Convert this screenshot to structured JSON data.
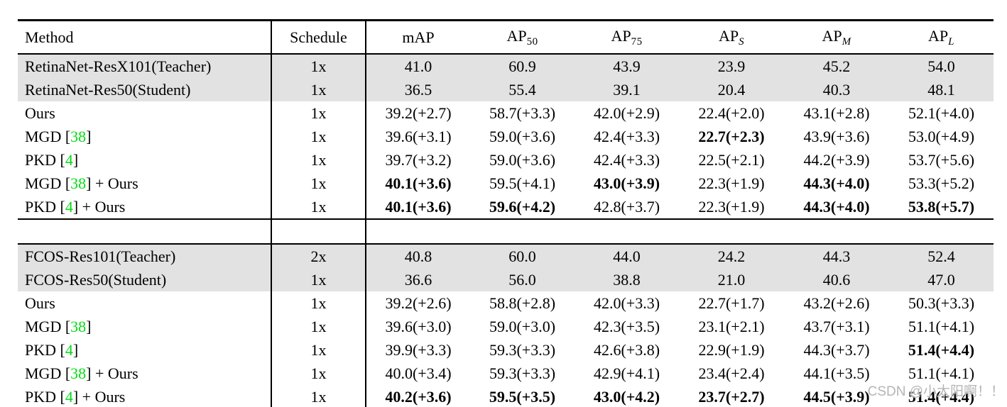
{
  "colors": {
    "citation": "#00dd11",
    "shaded_row": "#e2e2e2"
  },
  "watermark": "CSDN @小太阳啊！！",
  "table": {
    "columns": [
      {
        "label": "Method",
        "sub": ""
      },
      {
        "label": "Schedule",
        "sub": ""
      },
      {
        "label": "mAP",
        "sub": ""
      },
      {
        "label": "AP",
        "sub": "50"
      },
      {
        "label": "AP",
        "sub": "75"
      },
      {
        "label": "AP",
        "sub": "S"
      },
      {
        "label": "AP",
        "sub": "M"
      },
      {
        "label": "AP",
        "sub": "L"
      }
    ],
    "sections": [
      {
        "name": "retinanet",
        "rows": [
          {
            "shaded": true,
            "schedule": "1x",
            "method": [
              {
                "t": "RetinaNet-ResX101(Teacher)"
              }
            ],
            "cells": [
              {
                "t": "41.0"
              },
              {
                "t": "60.9"
              },
              {
                "t": "43.9"
              },
              {
                "t": "23.9"
              },
              {
                "t": "45.2"
              },
              {
                "t": "54.0"
              }
            ]
          },
          {
            "shaded": true,
            "schedule": "1x",
            "method": [
              {
                "t": "RetinaNet-Res50(Student)"
              }
            ],
            "cells": [
              {
                "t": "36.5"
              },
              {
                "t": "55.4"
              },
              {
                "t": "39.1"
              },
              {
                "t": "20.4"
              },
              {
                "t": "40.3"
              },
              {
                "t": "48.1"
              }
            ]
          },
          {
            "schedule": "1x",
            "method": [
              {
                "t": "Ours"
              }
            ],
            "cells": [
              {
                "t": "39.2(+2.7)"
              },
              {
                "t": "58.7(+3.3)"
              },
              {
                "t": "42.0(+2.9)"
              },
              {
                "t": "22.4(+2.0)"
              },
              {
                "t": "43.1(+2.8)"
              },
              {
                "t": "52.1(+4.0)"
              }
            ]
          },
          {
            "schedule": "1x",
            "method": [
              {
                "t": "MGD ["
              },
              {
                "t": "38",
                "cite": true
              },
              {
                "t": "]"
              }
            ],
            "cells": [
              {
                "t": "39.6(+3.1)"
              },
              {
                "t": "59.0(+3.6)"
              },
              {
                "t": "42.4(+3.3)"
              },
              {
                "t": "22.7(+2.3)",
                "b": true
              },
              {
                "t": "43.9(+3.6)"
              },
              {
                "t": "53.0(+4.9)"
              }
            ]
          },
          {
            "schedule": "1x",
            "method": [
              {
                "t": "PKD ["
              },
              {
                "t": "4",
                "cite": true
              },
              {
                "t": "]"
              }
            ],
            "cells": [
              {
                "t": "39.7(+3.2)"
              },
              {
                "t": "59.0(+3.6)"
              },
              {
                "t": "42.4(+3.3)"
              },
              {
                "t": "22.5(+2.1)"
              },
              {
                "t": "44.2(+3.9)"
              },
              {
                "t": "53.7(+5.6)"
              }
            ]
          },
          {
            "schedule": "1x",
            "method": [
              {
                "t": "MGD ["
              },
              {
                "t": "38",
                "cite": true
              },
              {
                "t": "] + Ours"
              }
            ],
            "cells": [
              {
                "t": "40.1(+3.6)",
                "b": true
              },
              {
                "t": "59.5(+4.1)"
              },
              {
                "t": "43.0(+3.9)",
                "b": true
              },
              {
                "t": "22.3(+1.9)"
              },
              {
                "t": "44.3(+4.0)",
                "b": true
              },
              {
                "t": "53.3(+5.2)"
              }
            ]
          },
          {
            "schedule": "1x",
            "method": [
              {
                "t": "PKD ["
              },
              {
                "t": "4",
                "cite": true
              },
              {
                "t": "] + Ours"
              }
            ],
            "cells": [
              {
                "t": "40.1(+3.6)",
                "b": true
              },
              {
                "t": "59.6(+4.2)",
                "b": true
              },
              {
                "t": "42.8(+3.7)"
              },
              {
                "t": "22.3(+1.9)"
              },
              {
                "t": "44.3(+4.0)",
                "b": true
              },
              {
                "t": "53.8(+5.7)",
                "b": true
              }
            ]
          }
        ]
      },
      {
        "name": "fcos",
        "rows": [
          {
            "shaded": true,
            "schedule": "2x",
            "method": [
              {
                "t": "FCOS-Res101(Teacher)"
              }
            ],
            "cells": [
              {
                "t": "40.8"
              },
              {
                "t": "60.0"
              },
              {
                "t": "44.0"
              },
              {
                "t": "24.2"
              },
              {
                "t": "44.3"
              },
              {
                "t": "52.4"
              }
            ]
          },
          {
            "shaded": true,
            "schedule": "1x",
            "method": [
              {
                "t": "FCOS-Res50(Student)"
              }
            ],
            "cells": [
              {
                "t": "36.6"
              },
              {
                "t": "56.0"
              },
              {
                "t": "38.8"
              },
              {
                "t": "21.0"
              },
              {
                "t": "40.6"
              },
              {
                "t": "47.0"
              }
            ]
          },
          {
            "schedule": "1x",
            "method": [
              {
                "t": "Ours"
              }
            ],
            "cells": [
              {
                "t": "39.2(+2.6)"
              },
              {
                "t": "58.8(+2.8)"
              },
              {
                "t": "42.0(+3.3)"
              },
              {
                "t": "22.7(+1.7)"
              },
              {
                "t": "43.2(+2.6)"
              },
              {
                "t": "50.3(+3.3)"
              }
            ]
          },
          {
            "schedule": "1x",
            "method": [
              {
                "t": "MGD ["
              },
              {
                "t": "38",
                "cite": true
              },
              {
                "t": "]"
              }
            ],
            "cells": [
              {
                "t": "39.6(+3.0)"
              },
              {
                "t": "59.0(+3.0)"
              },
              {
                "t": "42.3(+3.5)"
              },
              {
                "t": "23.1(+2.1)"
              },
              {
                "t": "43.7(+3.1)"
              },
              {
                "t": "51.1(+4.1)"
              }
            ]
          },
          {
            "schedule": "1x",
            "method": [
              {
                "t": "PKD ["
              },
              {
                "t": "4",
                "cite": true
              },
              {
                "t": "]"
              }
            ],
            "cells": [
              {
                "t": "39.9(+3.3)"
              },
              {
                "t": "59.3(+3.3)"
              },
              {
                "t": "42.6(+3.8)"
              },
              {
                "t": "22.9(+1.9)"
              },
              {
                "t": "44.3(+3.7)"
              },
              {
                "t": "51.4(+4.4)",
                "b": true
              }
            ]
          },
          {
            "schedule": "1x",
            "method": [
              {
                "t": "MGD ["
              },
              {
                "t": "38",
                "cite": true
              },
              {
                "t": "] + Ours"
              }
            ],
            "cells": [
              {
                "t": "40.0(+3.4)"
              },
              {
                "t": "59.3(+3.3)"
              },
              {
                "t": "42.9(+4.1)"
              },
              {
                "t": "23.4(+2.4)"
              },
              {
                "t": "44.1(+3.5)"
              },
              {
                "t": "51.1(+4.1)"
              }
            ]
          },
          {
            "schedule": "1x",
            "method": [
              {
                "t": "PKD ["
              },
              {
                "t": "4",
                "cite": true
              },
              {
                "t": "] + Ours"
              }
            ],
            "cells": [
              {
                "t": "40.2(+3.6)",
                "b": true
              },
              {
                "t": "59.5(+3.5)",
                "b": true
              },
              {
                "t": "43.0(+4.2)",
                "b": true
              },
              {
                "t": "23.7(+2.7)",
                "b": true
              },
              {
                "t": "44.5(+3.9)",
                "b": true
              },
              {
                "t": "51.4(+4.4)",
                "b": true
              }
            ]
          }
        ]
      }
    ]
  }
}
